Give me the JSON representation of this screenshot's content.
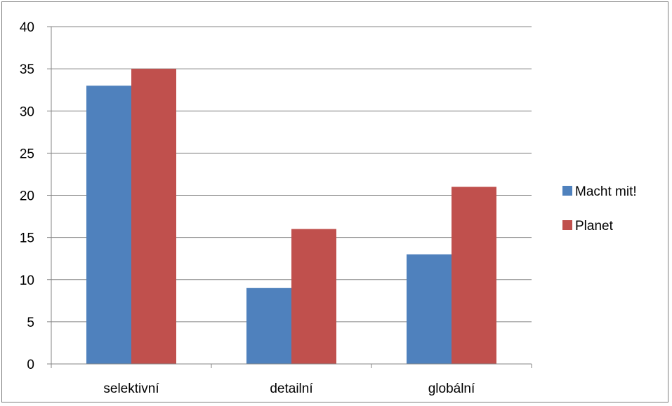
{
  "chart_data": {
    "type": "bar",
    "title": "",
    "xlabel": "",
    "ylabel": "",
    "categories": [
      "selektivní",
      "detailní",
      "globální"
    ],
    "series": [
      {
        "name": "Macht mit!",
        "color": "#4f81bd",
        "values": [
          33,
          9,
          13
        ]
      },
      {
        "name": "Planet",
        "color": "#c0504d",
        "values": [
          35,
          16,
          21
        ]
      }
    ],
    "ylim": [
      0,
      40
    ],
    "yticks": [
      0,
      5,
      10,
      15,
      20,
      25,
      30,
      35,
      40
    ],
    "grid": true,
    "legend_position": "right"
  }
}
